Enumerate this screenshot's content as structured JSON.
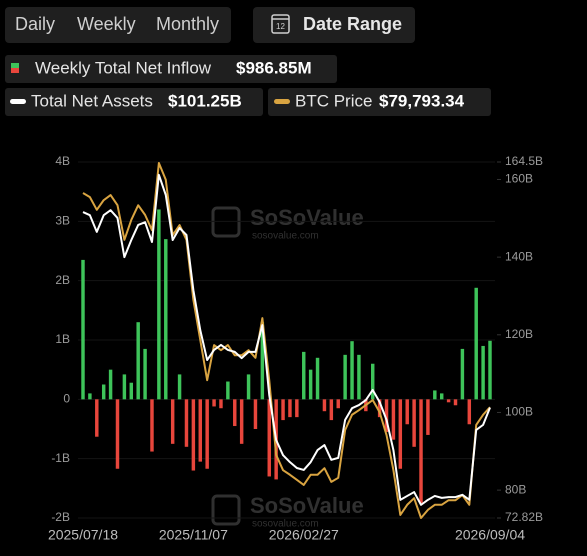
{
  "tabs": {
    "items": [
      "Daily",
      "Weekly",
      "Monthly"
    ],
    "active": 1
  },
  "date_range": {
    "label": "Date Range",
    "icon_text": "12"
  },
  "watermark": {
    "name": "SoSoValue",
    "url": "sosovalue.com"
  },
  "chart_data": {
    "type": "combo",
    "categories": [
      "2025/07/18",
      null,
      null,
      null,
      null,
      null,
      null,
      null,
      null,
      null,
      null,
      null,
      null,
      null,
      null,
      null,
      "2025/11/07",
      null,
      null,
      null,
      null,
      null,
      null,
      null,
      null,
      null,
      null,
      null,
      null,
      null,
      null,
      null,
      "2026/02/27",
      null,
      null,
      null,
      null,
      null,
      null,
      null,
      null,
      null,
      null,
      null,
      null,
      null,
      null,
      null,
      null,
      null,
      null,
      null,
      null,
      null,
      null,
      null,
      null,
      null,
      null,
      "2026/09/04"
    ],
    "ylim": [
      -2,
      4
    ],
    "yticks": [
      {
        "value": 4,
        "label": "4B"
      },
      {
        "value": 3,
        "label": "3B"
      },
      {
        "value": 2,
        "label": "2B"
      },
      {
        "value": 1,
        "label": "1B"
      },
      0,
      {
        "value": -1,
        "label": "-1B"
      },
      {
        "value": -2,
        "label": "-2B"
      }
    ],
    "y2lim": [
      72.82,
      164.5
    ],
    "y2ticks": [
      {
        "value": 164.5,
        "label": "164.5B"
      },
      {
        "value": 160,
        "label": "160B"
      },
      {
        "value": 140,
        "label": "140B"
      },
      {
        "value": 120,
        "label": "120B"
      },
      {
        "value": 100,
        "label": "100B"
      },
      {
        "value": 80,
        "label": "80B"
      },
      {
        "value": 72.82,
        "label": "72.82B"
      }
    ],
    "y3lim": [
      58000,
      128000
    ],
    "grid": true,
    "series": [
      {
        "name": "Weekly Total Net Inflow",
        "legend_value": "$986.85M",
        "type": "bar",
        "colors": {
          "positive": "#3ec45a",
          "negative": "#e8463c"
        },
        "values": [
          2.35,
          0.1,
          -0.63,
          0.25,
          0.5,
          -1.17,
          0.42,
          0.28,
          1.3,
          0.85,
          -0.88,
          3.2,
          2.7,
          -0.75,
          0.42,
          -0.8,
          -1.2,
          -1.05,
          -1.17,
          -0.12,
          -0.15,
          0.3,
          -0.45,
          -0.75,
          0.42,
          -0.5,
          1.3,
          -1.3,
          -1.35,
          -0.35,
          -0.3,
          -0.3,
          0.8,
          0.5,
          0.7,
          -0.2,
          -0.35,
          -0.15,
          0.75,
          0.98,
          0.75,
          -0.2,
          0.6,
          -0.3,
          -0.55,
          -0.68,
          -1.17,
          -0.42,
          -0.8,
          -1.75,
          -0.6,
          0.15,
          0.1,
          -0.05,
          -0.1,
          0.85,
          -0.42,
          1.88,
          0.9,
          0.98685
        ]
      },
      {
        "name": "Total Net Assets",
        "legend_value": "$101.25B",
        "type": "line",
        "axis": "y2",
        "color": "#ffffff",
        "values": [
          151.6,
          150.8,
          146.5,
          150.8,
          152.1,
          150.1,
          140.0,
          144.4,
          148.3,
          149.0,
          143.9,
          161.2,
          156.0,
          144.4,
          147.5,
          145.7,
          131.5,
          121.2,
          113.5,
          116.1,
          117.4,
          116.1,
          115.6,
          114.0,
          115.6,
          115.6,
          122.5,
          104.5,
          92.9,
          89.0,
          87.2,
          85.7,
          85.2,
          87.2,
          90.3,
          91.6,
          87.8,
          88.3,
          98.1,
          101.1,
          101.9,
          103.2,
          105.8,
          102.7,
          98.1,
          90.3,
          77.5,
          78.5,
          79.5,
          76.2,
          77.5,
          78.5,
          78.0,
          78.2,
          78.2,
          78.8,
          77.5,
          95.5,
          96.8,
          101.25
        ]
      },
      {
        "name": "BTC Price",
        "legend_value": "$79,793.34",
        "type": "line",
        "axis": "y3",
        "color": "#d9a441",
        "values": [
          121900,
          121100,
          118600,
          120500,
          121500,
          119500,
          112700,
          116600,
          119500,
          117600,
          114600,
          127800,
          124500,
          113600,
          115600,
          112700,
          100900,
          93000,
          85100,
          92000,
          91000,
          92000,
          90000,
          90000,
          91000,
          89500,
          97300,
          85100,
          70400,
          67400,
          66500,
          65500,
          64500,
          66500,
          66500,
          67800,
          65100,
          65900,
          75300,
          78300,
          79200,
          80200,
          81200,
          78800,
          74300,
          67400,
          58600,
          60600,
          61900,
          58000,
          59600,
          60600,
          60600,
          61500,
          61500,
          62500,
          60600,
          76300,
          78300,
          79793.34
        ]
      }
    ]
  }
}
